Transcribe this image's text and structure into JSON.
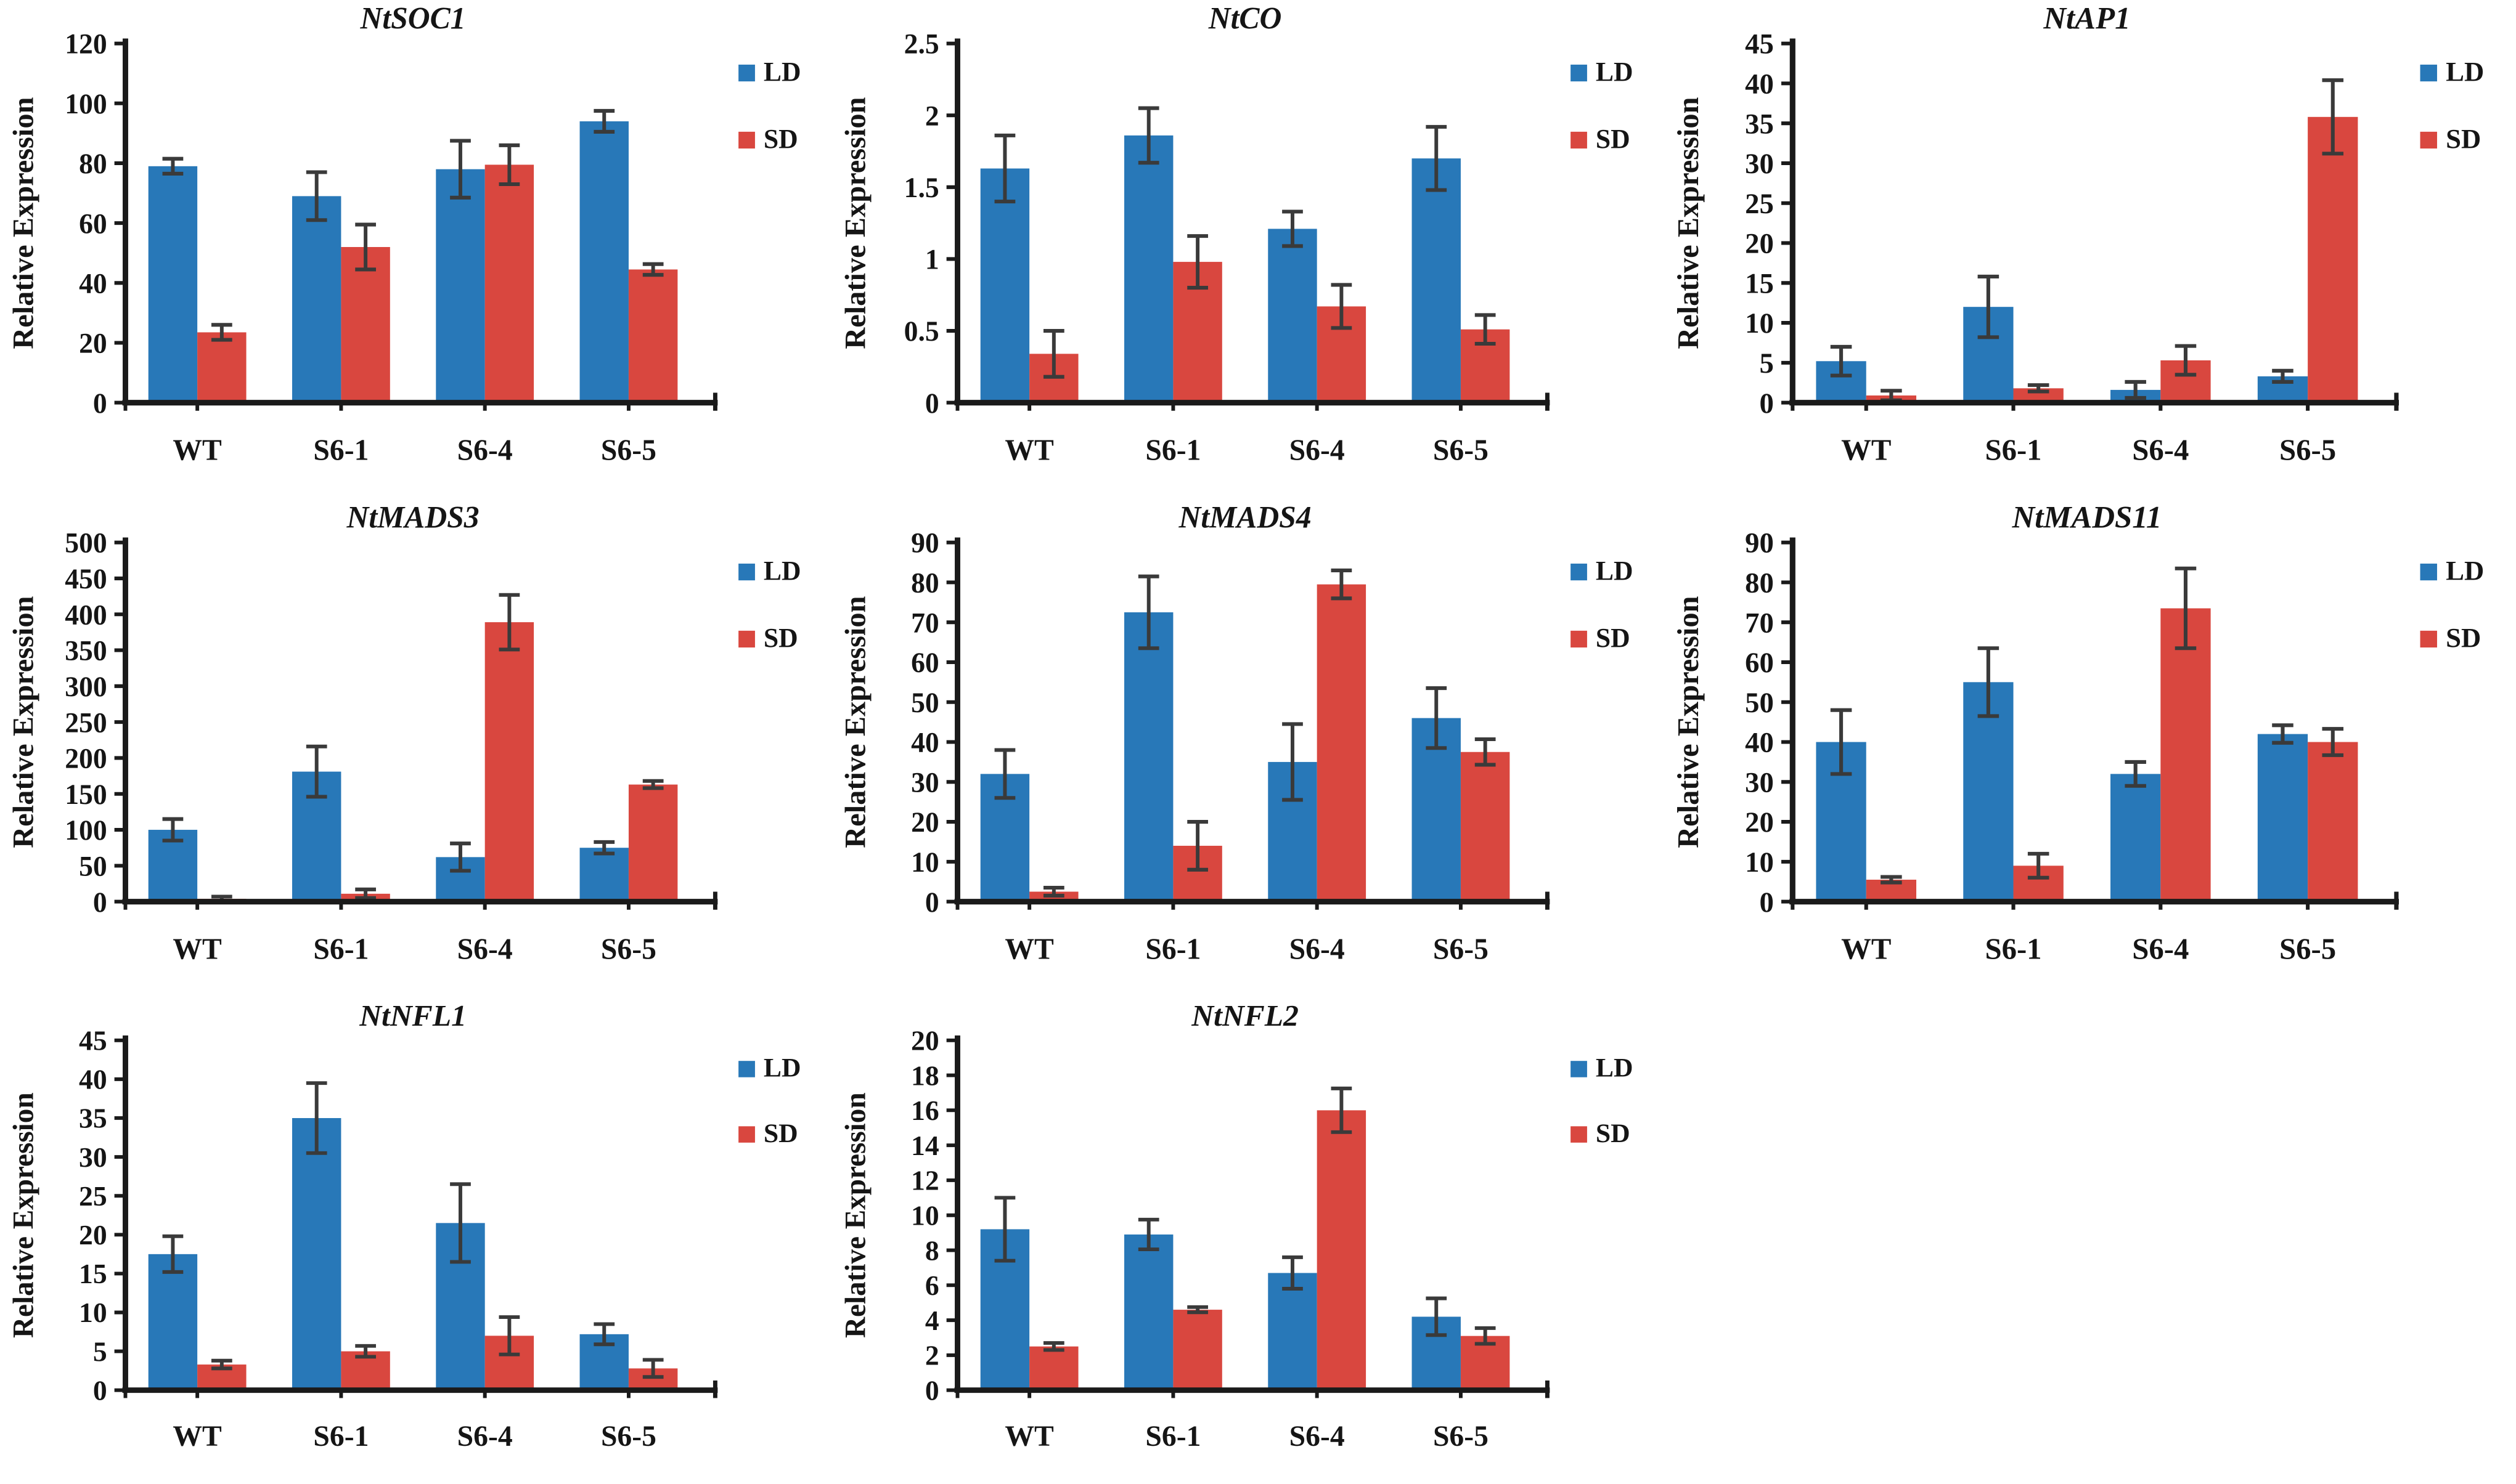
{
  "figure": {
    "background": "#ffffff",
    "axis_color": "#1a1a1a",
    "error_bar_color": "#3a3a3a",
    "series_colors": {
      "LD": "#2878b8",
      "SD": "#d9473f"
    },
    "legend_labels": [
      "LD",
      "SD"
    ],
    "shared_ylabel": "Relative Expression",
    "shared_categories": [
      "WT",
      "S6-1",
      "S6-4",
      "S6-5"
    ]
  },
  "chart_data": [
    {
      "type": "bar",
      "title": "NtSOC1",
      "xlabel": "",
      "ylabel": "Relative Expression",
      "categories": [
        "WT",
        "S6-1",
        "S6-4",
        "S6-5"
      ],
      "ylim": [
        0,
        120
      ],
      "yticks": [
        0,
        20,
        40,
        60,
        80,
        100,
        120
      ],
      "ytick_labels": [
        "0",
        "20",
        "40",
        "60",
        "80",
        "100",
        "120"
      ],
      "grid": false,
      "legend_position": "top-right",
      "series": [
        {
          "name": "LD",
          "color": "#2878b8",
          "values": [
            79,
            69,
            78,
            94
          ],
          "errors": [
            2.5,
            8,
            9.5,
            3.5
          ]
        },
        {
          "name": "SD",
          "color": "#d9473f",
          "values": [
            23.5,
            52,
            79.5,
            44.5
          ],
          "errors": [
            2.5,
            7.5,
            6.5,
            1.8
          ]
        }
      ]
    },
    {
      "type": "bar",
      "title": "NtCO",
      "xlabel": "",
      "ylabel": "Relative Expression",
      "categories": [
        "WT",
        "S6-1",
        "S6-4",
        "S6-5"
      ],
      "ylim": [
        0,
        2.5
      ],
      "yticks": [
        0,
        0.5,
        1,
        1.5,
        2,
        2.5
      ],
      "ytick_labels": [
        "0",
        "0.5",
        "1",
        "1.5",
        "2",
        "2.5"
      ],
      "grid": false,
      "legend_position": "top-right",
      "series": [
        {
          "name": "LD",
          "color": "#2878b8",
          "values": [
            1.63,
            1.86,
            1.21,
            1.7
          ],
          "errors": [
            0.23,
            0.19,
            0.12,
            0.22
          ]
        },
        {
          "name": "SD",
          "color": "#d9473f",
          "values": [
            0.34,
            0.98,
            0.67,
            0.51
          ],
          "errors": [
            0.16,
            0.18,
            0.15,
            0.1
          ]
        }
      ]
    },
    {
      "type": "bar",
      "title": "NtAP1",
      "xlabel": "",
      "ylabel": "Relative Expression",
      "categories": [
        "WT",
        "S6-1",
        "S6-4",
        "S6-5"
      ],
      "ylim": [
        0,
        45
      ],
      "yticks": [
        0,
        5,
        10,
        15,
        20,
        25,
        30,
        35,
        40,
        45
      ],
      "ytick_labels": [
        "0",
        "5",
        "10",
        "15",
        "20",
        "25",
        "30",
        "35",
        "40",
        "45"
      ],
      "grid": false,
      "legend_position": "top-right",
      "series": [
        {
          "name": "LD",
          "color": "#2878b8",
          "values": [
            5.2,
            12,
            1.6,
            3.3
          ],
          "errors": [
            1.8,
            3.8,
            1.0,
            0.7
          ]
        },
        {
          "name": "SD",
          "color": "#d9473f",
          "values": [
            0.9,
            1.8,
            5.3,
            35.8
          ],
          "errors": [
            0.6,
            0.4,
            1.8,
            4.6
          ]
        }
      ]
    },
    {
      "type": "bar",
      "title": "NtMADS3",
      "xlabel": "",
      "ylabel": "Relative Expression",
      "categories": [
        "WT",
        "S6-1",
        "S6-4",
        "S6-5"
      ],
      "ylim": [
        0,
        500
      ],
      "yticks": [
        0,
        50,
        100,
        150,
        200,
        250,
        300,
        350,
        400,
        450,
        500
      ],
      "ytick_labels": [
        "0",
        "50",
        "100",
        "150",
        "200",
        "250",
        "300",
        "350",
        "400",
        "450",
        "500"
      ],
      "grid": false,
      "legend_position": "top-right",
      "series": [
        {
          "name": "LD",
          "color": "#2878b8",
          "values": [
            100,
            181,
            62,
            75
          ],
          "errors": [
            15,
            35,
            19,
            8
          ]
        },
        {
          "name": "SD",
          "color": "#d9473f",
          "values": [
            4,
            11,
            389,
            163
          ],
          "errors": [
            3,
            6,
            38,
            5
          ]
        }
      ]
    },
    {
      "type": "bar",
      "title": "NtMADS4",
      "xlabel": "",
      "ylabel": "Relative Expression",
      "categories": [
        "WT",
        "S6-1",
        "S6-4",
        "S6-5"
      ],
      "ylim": [
        0,
        90
      ],
      "yticks": [
        0,
        10,
        20,
        30,
        40,
        50,
        60,
        70,
        80,
        90
      ],
      "ytick_labels": [
        "0",
        "10",
        "20",
        "30",
        "40",
        "50",
        "60",
        "70",
        "80",
        "90"
      ],
      "grid": false,
      "legend_position": "top-right",
      "series": [
        {
          "name": "LD",
          "color": "#2878b8",
          "values": [
            32,
            72.5,
            35,
            46
          ],
          "errors": [
            6,
            9,
            9.5,
            7.5
          ]
        },
        {
          "name": "SD",
          "color": "#d9473f",
          "values": [
            2.5,
            14,
            79.5,
            37.5
          ],
          "errors": [
            1,
            6,
            3.5,
            3.2
          ]
        }
      ]
    },
    {
      "type": "bar",
      "title": "NtMADS11",
      "xlabel": "",
      "ylabel": "Relative Expression",
      "categories": [
        "WT",
        "S6-1",
        "S6-4",
        "S6-5"
      ],
      "ylim": [
        0,
        90
      ],
      "yticks": [
        0,
        10,
        20,
        30,
        40,
        50,
        60,
        70,
        80,
        90
      ],
      "ytick_labels": [
        "0",
        "10",
        "20",
        "30",
        "40",
        "50",
        "60",
        "70",
        "80",
        "90"
      ],
      "grid": false,
      "legend_position": "top-right",
      "series": [
        {
          "name": "LD",
          "color": "#2878b8",
          "values": [
            40,
            55,
            32,
            42
          ],
          "errors": [
            8,
            8.5,
            3,
            2.2
          ]
        },
        {
          "name": "SD",
          "color": "#d9473f",
          "values": [
            5.5,
            9,
            73.5,
            40
          ],
          "errors": [
            0.7,
            3,
            10,
            3.3
          ]
        }
      ]
    },
    {
      "type": "bar",
      "title": "NtNFL1",
      "xlabel": "",
      "ylabel": "Relative Expression",
      "categories": [
        "WT",
        "S6-1",
        "S6-4",
        "S6-5"
      ],
      "ylim": [
        0,
        45
      ],
      "yticks": [
        0,
        5,
        10,
        15,
        20,
        25,
        30,
        35,
        40,
        45
      ],
      "ytick_labels": [
        "0",
        "5",
        "10",
        "15",
        "20",
        "25",
        "30",
        "35",
        "40",
        "45"
      ],
      "grid": false,
      "legend_position": "top-right",
      "series": [
        {
          "name": "LD",
          "color": "#2878b8",
          "values": [
            17.5,
            35,
            21.5,
            7.2
          ],
          "errors": [
            2.3,
            4.5,
            5,
            1.3
          ]
        },
        {
          "name": "SD",
          "color": "#d9473f",
          "values": [
            3.3,
            5,
            7,
            2.8
          ],
          "errors": [
            0.5,
            0.7,
            2.4,
            1.1
          ]
        }
      ]
    },
    {
      "type": "bar",
      "title": "NtNFL2",
      "xlabel": "",
      "ylabel": "Relative Expression",
      "categories": [
        "WT",
        "S6-1",
        "S6-4",
        "S6-5"
      ],
      "ylim": [
        0,
        20
      ],
      "yticks": [
        0,
        2,
        4,
        6,
        8,
        10,
        12,
        14,
        16,
        18,
        20
      ],
      "ytick_labels": [
        "0",
        "2",
        "4",
        "6",
        "8",
        "10",
        "12",
        "14",
        "16",
        "18",
        "20"
      ],
      "grid": false,
      "legend_position": "top-right",
      "series": [
        {
          "name": "LD",
          "color": "#2878b8",
          "values": [
            9.2,
            8.9,
            6.7,
            4.2
          ],
          "errors": [
            1.8,
            0.85,
            0.9,
            1.05
          ]
        },
        {
          "name": "SD",
          "color": "#d9473f",
          "values": [
            2.5,
            4.6,
            16,
            3.1
          ],
          "errors": [
            0.2,
            0.15,
            1.25,
            0.45
          ]
        }
      ]
    }
  ]
}
